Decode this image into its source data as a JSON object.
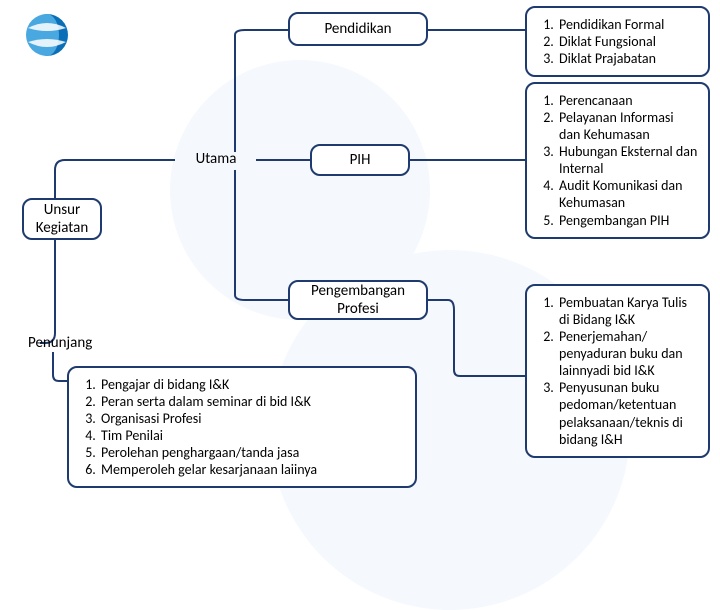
{
  "colors": {
    "border": "#1f3a6e",
    "background": "#ffffff",
    "bg_circle": "#f5f8fc",
    "text": "#000000",
    "logo_primary": "#0b6fb8",
    "logo_light": "#4aa8e0"
  },
  "typography": {
    "node_fontsize": 15,
    "list_fontsize": 14,
    "font_family": "Calibri, Arial, sans-serif"
  },
  "logo": {
    "type": "swirl-globe",
    "colors": [
      "#0b6fb8",
      "#4aa8e0",
      "#ffffff"
    ]
  },
  "nodes": {
    "unsur_kegiatan": {
      "label_line1": "Unsur",
      "label_line2": "Kegiatan"
    },
    "utama": {
      "label": "Utama"
    },
    "pendidikan": {
      "label": "Pendidikan"
    },
    "pih": {
      "label": "PIH"
    },
    "pengembangan_profesi": {
      "label_line1": "Pengembangan",
      "label_line2": "Profesi"
    },
    "penunjang": {
      "label": "Penunjang"
    }
  },
  "lists": {
    "pendidikan_items": [
      "Pendidikan Formal",
      "Diklat Fungsional",
      "Diklat Prajabatan"
    ],
    "pih_items": [
      "Perencanaan",
      "Pelayanan Informasi dan Kehumasan",
      "Hubungan Eksternal dan Internal",
      "Audit Komunikasi dan Kehumasan",
      "Pengembangan PIH"
    ],
    "pengembangan_items": [
      "Pembuatan Karya Tulis di Bidang I&K",
      "Penerjemahan/ penyaduran buku dan  lainnyadi bid I&K",
      "Penyusunan buku pedoman/ketentuan pelaksanaan/teknis di bidang I&H"
    ],
    "penunjang_items": [
      "Pengajar di bidang I&K",
      "Peran serta dalam seminar di bid I&K",
      "Organisasi Profesi",
      "Tim Penilai",
      "Perolehan penghargaan/tanda jasa",
      "Memperoleh gelar kesarjanaan laiinya"
    ]
  },
  "edges": [
    {
      "from": "unsur_kegiatan",
      "to": "utama"
    },
    {
      "from": "unsur_kegiatan",
      "to": "penunjang"
    },
    {
      "from": "utama",
      "to": "pendidikan"
    },
    {
      "from": "utama",
      "to": "pih"
    },
    {
      "from": "utama",
      "to": "pengembangan_profesi"
    },
    {
      "from": "pendidikan",
      "to": "pendidikan_items"
    },
    {
      "from": "pih",
      "to": "pih_items"
    },
    {
      "from": "pengembangan_profesi",
      "to": "pengembangan_items"
    },
    {
      "from": "penunjang",
      "to": "penunjang_items"
    }
  ]
}
